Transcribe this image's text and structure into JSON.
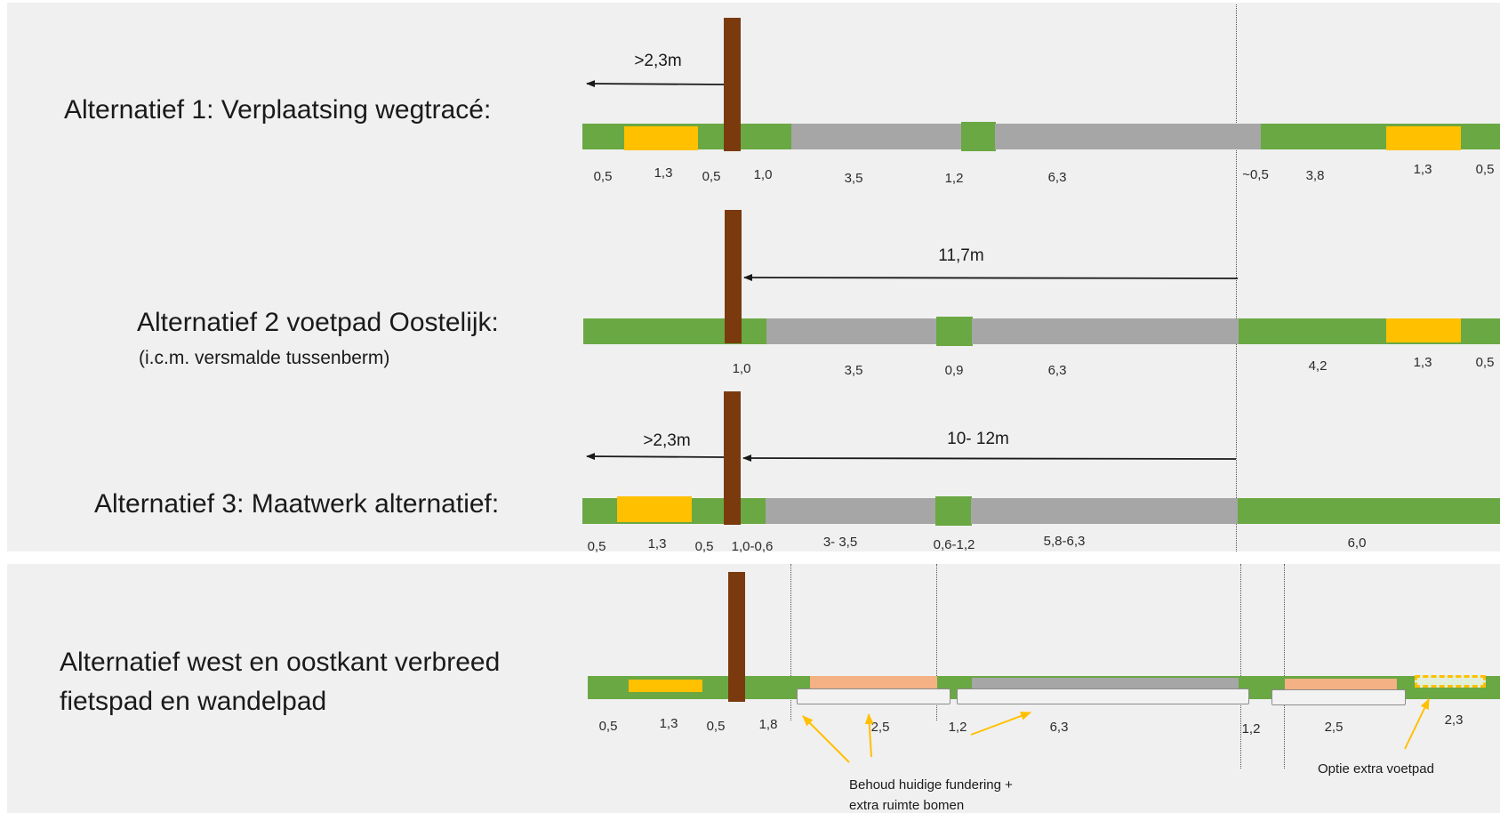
{
  "colors": {
    "grass": "#6aa843",
    "path": "#ffc000",
    "road": "#a6a6a6",
    "bike_path": "#f4b183",
    "tree": "#7b3a0e",
    "foundation": "#f2f2f2",
    "arrow": "#1a1a1a",
    "annotation_arrow": "#ffc000"
  },
  "alt1": {
    "title": "Alternatief 1: Verplaatsing wegtracé:",
    "arrow_label": ">2,3m",
    "dims": [
      "0,5",
      "1,3",
      "0,5",
      "1,0",
      "3,5",
      "1,2",
      "6,3",
      "~0,5",
      "3,8",
      "1,3",
      "0,5"
    ]
  },
  "alt2": {
    "title": "Alternatief 2 voetpad Oostelijk:",
    "subtitle": "(i.c.m. versmalde tussenberm)",
    "arrow_label": "11,7m",
    "dims": [
      "1,0",
      "3,5",
      "0,9",
      "6,3",
      "4,2",
      "1,3",
      "0,5"
    ]
  },
  "alt3": {
    "title": "Alternatief 3: Maatwerk alternatief:",
    "arrow_label_left": ">2,3m",
    "arrow_label_right": "10- 12m",
    "dims": [
      "0,5",
      "1,3",
      "0,5",
      "1,0-0,6",
      "3- 3,5",
      "0,6-1,2",
      "5,8-6,3",
      "6,0"
    ]
  },
  "alt4": {
    "title_line1": "Alternatief west en oostkant verbreed",
    "title_line2": "fietspad en wandelpad",
    "dims": [
      "0,5",
      "1,3",
      "0,5",
      "1,8",
      "2,5",
      "1,2",
      "6,3",
      "1,2",
      "2,5",
      "2,3"
    ],
    "note_foundation_line1": "Behoud huidige fundering +",
    "note_foundation_line2": "extra ruimte bomen",
    "note_footpath": "Optie extra voetpad"
  }
}
